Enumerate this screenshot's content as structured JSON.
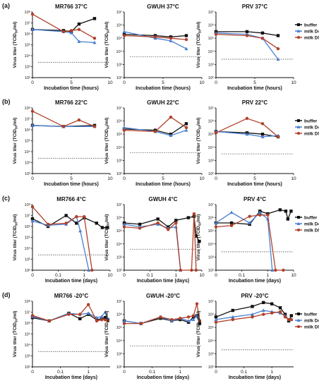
{
  "figure": {
    "row_labels": [
      "(a)",
      "(b)",
      "(c)",
      "(d)"
    ],
    "y_axis_label": "Virus titer (TCID",
    "y_axis_label_sub": "50",
    "y_axis_label_tail": "/ml)",
    "y_ticks": [
      "10²",
      "10³",
      "10⁴",
      "10⁵",
      "10⁶",
      "10⁷",
      "10⁸"
    ],
    "legend": [
      {
        "label": "buffer",
        "color": "#111111",
        "marker": "square"
      },
      {
        "label": "milk D4",
        "color": "#4a7fd0",
        "marker": "triangle"
      },
      {
        "label": "milk D5",
        "color": "#b0402a",
        "marker": "circle"
      }
    ]
  },
  "chart_data": [
    {
      "type": "line",
      "row": 0,
      "col": 0,
      "title": "MR766 37°C",
      "xlabel": "Incubation time (hours)",
      "ylabel": "Virus titer (TCID50/ml)",
      "x_scale": "linear",
      "x_ticks": [
        "0",
        "5",
        "10"
      ],
      "xlim": [
        0,
        10
      ],
      "ylim": [
        2,
        8
      ],
      "y_scale": "log10",
      "detection_limit": 3.4,
      "series": [
        {
          "name": "buffer",
          "x": [
            0,
            4,
            5,
            6,
            8
          ],
          "y": [
            6.4,
            6.3,
            6.2,
            6.9,
            7.4
          ]
        },
        {
          "name": "milk D4",
          "x": [
            0,
            4,
            5,
            6,
            8
          ],
          "y": [
            6.4,
            6.2,
            6.1,
            5.3,
            5.2
          ]
        },
        {
          "name": "milk D5",
          "x": [
            0,
            4,
            5,
            6,
            8
          ],
          "y": [
            7.8,
            6.2,
            6.3,
            6.4,
            5.6
          ]
        }
      ]
    },
    {
      "type": "line",
      "row": 0,
      "col": 1,
      "title": "GWUH 37°C",
      "xlabel": "Incubation time (hours)",
      "ylabel": "Virus titer (TCID50/ml)",
      "x_scale": "linear",
      "x_ticks": [
        "0",
        "5",
        "10"
      ],
      "xlim": [
        0,
        10
      ],
      "ylim": [
        2,
        7
      ],
      "y_scale": "log10",
      "detection_limit": 3.6,
      "series": [
        {
          "name": "buffer",
          "x": [
            0,
            4,
            6,
            8
          ],
          "y": [
            5.3,
            5.2,
            5.1,
            5.2
          ]
        },
        {
          "name": "milk D4",
          "x": [
            0,
            4,
            6,
            8
          ],
          "y": [
            5.5,
            5.0,
            4.8,
            4.2
          ]
        },
        {
          "name": "milk D5",
          "x": [
            0,
            4,
            6,
            8
          ],
          "y": [
            5.2,
            5.1,
            5.0,
            4.9
          ]
        }
      ]
    },
    {
      "type": "line",
      "row": 0,
      "col": 2,
      "title": "PRV 37°C",
      "xlabel": "Incubation time (hours)",
      "ylabel": "Virus titer (TCID50/ml)",
      "x_scale": "linear",
      "x_ticks": [
        "0",
        "5",
        "10"
      ],
      "xlim": [
        0,
        10
      ],
      "ylim": [
        2,
        7
      ],
      "y_scale": "log10",
      "detection_limit": 3.4,
      "series": [
        {
          "name": "buffer",
          "x": [
            0,
            4,
            6,
            8
          ],
          "y": [
            5.5,
            5.5,
            5.4,
            5.2
          ]
        },
        {
          "name": "milk D4",
          "x": [
            0,
            4,
            6,
            8
          ],
          "y": [
            5.4,
            5.3,
            5.0,
            3.4
          ]
        },
        {
          "name": "milk D5",
          "x": [
            0,
            4,
            6,
            8
          ],
          "y": [
            5.3,
            5.2,
            5.0,
            4.2
          ]
        }
      ]
    },
    {
      "type": "line",
      "row": 1,
      "col": 0,
      "title": "MR766 22°C",
      "xlabel": "Incubation time (hours)",
      "ylabel": "Virus titer (TCID50/ml)",
      "x_scale": "linear",
      "x_ticks": [
        "0",
        "5",
        "10"
      ],
      "xlim": [
        0,
        10
      ],
      "ylim": [
        2,
        8
      ],
      "y_scale": "log10",
      "detection_limit": 3.4,
      "series": [
        {
          "name": "buffer",
          "x": [
            0,
            4,
            8
          ],
          "y": [
            6.4,
            6.3,
            6.4
          ]
        },
        {
          "name": "milk D4",
          "x": [
            0,
            4,
            8
          ],
          "y": [
            6.4,
            6.3,
            6.3
          ]
        },
        {
          "name": "milk D5",
          "x": [
            0,
            4,
            6,
            8
          ],
          "y": [
            7.7,
            6.3,
            6.9,
            6.3
          ]
        }
      ]
    },
    {
      "type": "line",
      "row": 1,
      "col": 1,
      "title": "GWUH 22°C",
      "xlabel": "Incubation time (hours)",
      "ylabel": "Virus titer (TCID50/ml)",
      "x_scale": "linear",
      "x_ticks": [
        "0",
        "5",
        "10"
      ],
      "xlim": [
        0,
        10
      ],
      "ylim": [
        2,
        7
      ],
      "y_scale": "log10",
      "detection_limit": 3.6,
      "series": [
        {
          "name": "buffer",
          "x": [
            0,
            4,
            6,
            8
          ],
          "y": [
            5.4,
            5.3,
            5.0,
            5.8
          ]
        },
        {
          "name": "milk D4",
          "x": [
            0,
            4,
            6,
            8
          ],
          "y": [
            5.5,
            5.2,
            4.9,
            5.3
          ]
        },
        {
          "name": "milk D5",
          "x": [
            0,
            4,
            6,
            8
          ],
          "y": [
            5.3,
            5.2,
            6.3,
            5.5
          ]
        }
      ]
    },
    {
      "type": "line",
      "row": 1,
      "col": 2,
      "title": "PRV 22°C",
      "xlabel": "Incubation time (hours)",
      "ylabel": "Virus titer (TCID50/ml)",
      "x_scale": "linear",
      "x_ticks": [
        "0",
        "5",
        "10"
      ],
      "xlim": [
        0,
        10
      ],
      "ylim": [
        2,
        7
      ],
      "y_scale": "log10",
      "detection_limit": 3.5,
      "series": [
        {
          "name": "buffer",
          "x": [
            0,
            4,
            6,
            8
          ],
          "y": [
            5.2,
            5.1,
            5.0,
            4.8
          ]
        },
        {
          "name": "milk D4",
          "x": [
            0,
            4,
            6,
            8
          ],
          "y": [
            5.2,
            5.0,
            4.8,
            4.9
          ]
        },
        {
          "name": "milk D5",
          "x": [
            0,
            4,
            6,
            8
          ],
          "y": [
            5.1,
            6.2,
            5.8,
            4.8
          ]
        }
      ]
    },
    {
      "type": "line",
      "row": 2,
      "col": 0,
      "title": "MR766 4°C",
      "xlabel": "Incubation time (days)",
      "ylabel": "Virus titer (TCID50/ml)",
      "x_scale": "log",
      "x_ticks": [
        "0",
        "0.1",
        "1",
        "10"
      ],
      "xlim": [
        0,
        10
      ],
      "ylim": [
        2,
        8
      ],
      "y_scale": "log10",
      "detection_limit": 3.4,
      "series": [
        {
          "name": "buffer",
          "x": [
            0,
            0.04,
            0.2,
            0.5,
            1,
            3,
            5,
            8
          ],
          "y": [
            6.7,
            6.0,
            7.0,
            6.3,
            6.8,
            6.3,
            5.9,
            5.9
          ]
        },
        {
          "name": "milk D4",
          "x": [
            0,
            0.04,
            0.2,
            0.5,
            0.7,
            1.5
          ],
          "y": [
            6.5,
            6.1,
            6.2,
            6.9,
            5.6,
            2.0
          ]
        },
        {
          "name": "milk D5",
          "x": [
            0,
            0.04,
            0.2,
            0.5,
            1,
            2
          ],
          "y": [
            7.8,
            6.2,
            6.3,
            6.9,
            6.9,
            2.0
          ]
        }
      ]
    },
    {
      "type": "line",
      "row": 2,
      "col": 1,
      "title": "GWUH 4°C",
      "xlabel": "Incubation time (days)",
      "ylabel": "Virus titer (TCID50/ml)",
      "x_scale": "log",
      "x_ticks": [
        "0",
        "0.1",
        "1",
        "10"
      ],
      "xlim": [
        0,
        10
      ],
      "ylim": [
        2,
        7
      ],
      "y_scale": "log10",
      "detection_limit": 3.6,
      "series": [
        {
          "name": "buffer",
          "x": [
            0,
            0.04,
            0.2,
            0.5,
            1,
            3,
            5,
            6,
            8
          ],
          "y": [
            5.6,
            5.5,
            5.9,
            5.3,
            5.8,
            6.0,
            6.1,
            4.6,
            4.2
          ]
        },
        {
          "name": "milk D4",
          "x": [
            0,
            0.04,
            0.2,
            0.5,
            1,
            1.5
          ],
          "y": [
            5.5,
            5.3,
            5.5,
            5.2,
            5.3,
            2.0
          ]
        },
        {
          "name": "milk D5",
          "x": [
            0,
            0.04,
            0.2,
            0.5,
            1,
            1.5,
            4,
            5,
            6
          ],
          "y": [
            5.3,
            5.2,
            5.6,
            5.1,
            5.6,
            2.0,
            2.0,
            6.3,
            2.0
          ]
        }
      ]
    },
    {
      "type": "line",
      "row": 2,
      "col": 2,
      "title": "PRV 4°C",
      "xlabel": "Incubation time (days)",
      "ylabel": "Virus titer (TCID50/ml)",
      "x_scale": "log",
      "x_ticks": [
        "0",
        "0.1",
        "1",
        "10"
      ],
      "xlim": [
        0,
        10
      ],
      "ylim": [
        2,
        7
      ],
      "y_scale": "log10",
      "detection_limit": 3.4,
      "series": [
        {
          "name": "buffer",
          "x": [
            0,
            0.04,
            0.2,
            0.5,
            1,
            3,
            5,
            6,
            8
          ],
          "y": [
            5.6,
            5.6,
            5.5,
            6.5,
            6.3,
            6.6,
            6.5,
            5.9,
            6.5
          ]
        },
        {
          "name": "milk D4",
          "x": [
            0,
            0.04,
            0.2,
            0.5,
            1,
            1.5
          ],
          "y": [
            5.6,
            6.4,
            5.6,
            6.4,
            5.9,
            2.0
          ]
        },
        {
          "name": "milk D5",
          "x": [
            0,
            0.04,
            0.2,
            0.5,
            1,
            2,
            4
          ],
          "y": [
            5.3,
            5.4,
            6.1,
            6.2,
            6.2,
            2.0,
            2.0
          ]
        }
      ]
    },
    {
      "type": "line",
      "row": 3,
      "col": 0,
      "title": "MR766 -20°C",
      "xlabel": "Incubation time (days)",
      "ylabel": "Virus titer (TCID50/ml)",
      "x_scale": "log",
      "x_ticks": [
        "0",
        "0.1",
        "1"
      ],
      "xlim": [
        0,
        6
      ],
      "ylim": [
        2,
        8
      ],
      "y_scale": "log10",
      "detection_limit": 3.4,
      "series": [
        {
          "name": "buffer",
          "x": [
            0,
            0.04,
            0.2,
            0.5,
            1,
            2,
            3,
            4,
            5
          ],
          "y": [
            6.5,
            6.2,
            6.9,
            6.4,
            6.8,
            6.3,
            6.4,
            6.5,
            6.3
          ]
        },
        {
          "name": "milk D4",
          "x": [
            0,
            0.04,
            0.2,
            0.5,
            1,
            2,
            3,
            4,
            5
          ],
          "y": [
            6.6,
            6.2,
            6.9,
            6.8,
            6.9,
            6.5,
            6.6,
            7.0,
            6.4
          ]
        },
        {
          "name": "milk D5",
          "x": [
            0,
            0.04,
            0.2,
            0.5,
            1,
            2,
            3,
            4,
            5
          ],
          "y": [
            6.7,
            6.2,
            6.8,
            6.8,
            7.7,
            6.2,
            6.3,
            6.3,
            6.2
          ]
        }
      ]
    },
    {
      "type": "line",
      "row": 3,
      "col": 1,
      "title": "GWUH -20°C",
      "xlabel": "Incubation time (days)",
      "ylabel": "Virus titer (TCID50/ml)",
      "x_scale": "log",
      "x_ticks": [
        "0",
        "0.1",
        "1"
      ],
      "xlim": [
        0,
        6
      ],
      "ylim": [
        2,
        7
      ],
      "y_scale": "log10",
      "detection_limit": 3.6,
      "series": [
        {
          "name": "buffer",
          "x": [
            0,
            0.04,
            0.2,
            0.5,
            1,
            2,
            3,
            4,
            5
          ],
          "y": [
            5.5,
            5.3,
            5.7,
            5.5,
            5.6,
            5.4,
            5.8,
            5.9,
            5.3
          ]
        },
        {
          "name": "milk D4",
          "x": [
            0,
            0.04,
            0.2,
            0.5,
            1,
            2,
            3,
            4,
            5
          ],
          "y": [
            5.5,
            5.3,
            5.8,
            5.5,
            5.7,
            5.5,
            5.6,
            5.9,
            5.5
          ]
        },
        {
          "name": "milk D5",
          "x": [
            0,
            0.04,
            0.2,
            0.5,
            1,
            2,
            3,
            4,
            5
          ],
          "y": [
            5.3,
            5.3,
            5.8,
            5.6,
            5.7,
            5.8,
            5.9,
            6.8,
            5.5
          ]
        }
      ]
    },
    {
      "type": "line",
      "row": 3,
      "col": 2,
      "title": "PRV -20°C",
      "xlabel": "Incubation time (days)",
      "ylabel": "Virus titer (TCID50/ml)",
      "x_scale": "log",
      "x_ticks": [
        "0",
        "0.1",
        "1"
      ],
      "xlim": [
        0,
        6
      ],
      "ylim": [
        2,
        7
      ],
      "y_scale": "log10",
      "detection_limit": 3.3,
      "series": [
        {
          "name": "buffer",
          "x": [
            0,
            0.04,
            0.2,
            0.5,
            1,
            2,
            3,
            4,
            5
          ],
          "y": [
            5.8,
            6.3,
            6.6,
            6.9,
            6.8,
            6.5,
            6.0,
            5.5,
            5.9
          ]
        },
        {
          "name": "milk D4",
          "x": [
            0,
            0.04,
            0.2,
            0.5,
            1,
            2,
            3,
            4,
            5
          ],
          "y": [
            5.6,
            5.8,
            6.0,
            6.3,
            6.2,
            6.1,
            5.9,
            5.6,
            5.6
          ]
        },
        {
          "name": "milk D5",
          "x": [
            0,
            0.04,
            0.2,
            0.5,
            1,
            2,
            3,
            4,
            5
          ],
          "y": [
            5.4,
            5.6,
            5.8,
            6.0,
            6.1,
            6.2,
            5.8,
            5.6,
            5.6
          ]
        }
      ]
    }
  ]
}
